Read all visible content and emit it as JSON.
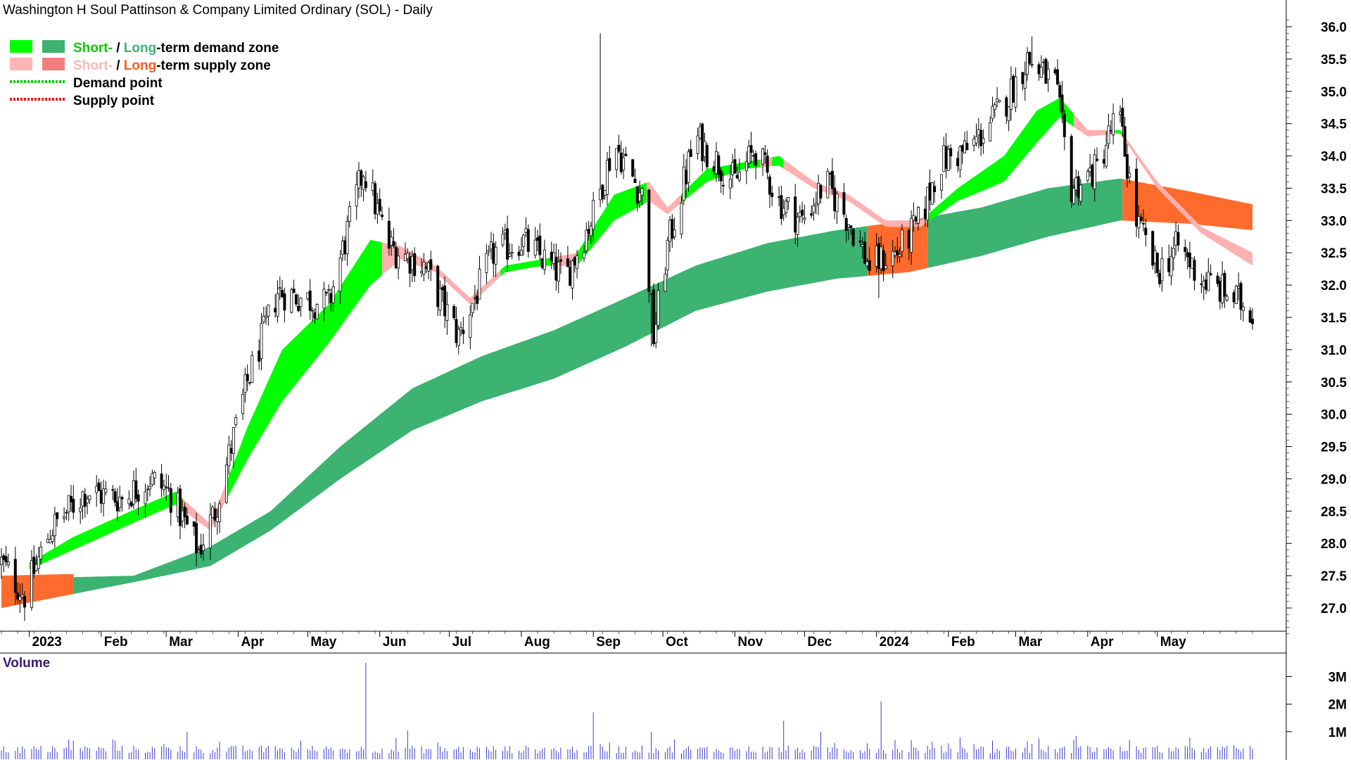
{
  "chart_data": {
    "type": "candlestick",
    "title": "Washington H Soul Pattinson & Company Limited Ordinary (SOL) - Daily",
    "legend": [
      {
        "swatch_colors": [
          "#00ff00",
          "#3cb371"
        ],
        "parts": [
          {
            "text": "Short-",
            "color": "#00cc00"
          },
          {
            "text": " / ",
            "color": "#000000"
          },
          {
            "text": "Long",
            "color": "#3cb371"
          },
          {
            "text": "-term demand zone",
            "color": "#000000"
          }
        ]
      },
      {
        "swatch_colors": [
          "#ffb6b6",
          "#f08080"
        ],
        "parts": [
          {
            "text": "Short-",
            "color": "#ffb6b6"
          },
          {
            "text": " / ",
            "color": "#000000"
          },
          {
            "text": "Long",
            "color": "#ff5a1e"
          },
          {
            "text": "-term supply zone",
            "color": "#000000"
          }
        ]
      },
      {
        "line_color": "#00cc00",
        "parts": [
          {
            "text": "Demand point",
            "color": "#000000"
          }
        ]
      },
      {
        "line_color": "#ff0000",
        "parts": [
          {
            "text": "Supply point",
            "color": "#000000"
          }
        ]
      }
    ],
    "y_axis": {
      "min": 26.5,
      "max": 36.2,
      "ticks": [
        27.0,
        27.5,
        28.0,
        28.5,
        29.0,
        29.5,
        30.0,
        30.5,
        31.0,
        31.5,
        32.0,
        32.5,
        33.0,
        33.5,
        34.0,
        34.5,
        35.0,
        35.5,
        36.0
      ]
    },
    "x_axis": {
      "start": "2022-12-20",
      "end": "2024-06-11",
      "month_labels": [
        {
          "label": "2023",
          "date": "2023-01-01"
        },
        {
          "label": "Feb",
          "date": "2023-02-01"
        },
        {
          "label": "Mar",
          "date": "2023-03-01"
        },
        {
          "label": "Apr",
          "date": "2023-04-01"
        },
        {
          "label": "May",
          "date": "2023-05-01"
        },
        {
          "label": "Jun",
          "date": "2023-06-01"
        },
        {
          "label": "Jul",
          "date": "2023-07-01"
        },
        {
          "label": "Aug",
          "date": "2023-08-01"
        },
        {
          "label": "Sep",
          "date": "2023-09-01"
        },
        {
          "label": "Oct",
          "date": "2023-10-01"
        },
        {
          "label": "Nov",
          "date": "2023-11-01"
        },
        {
          "label": "Dec",
          "date": "2023-12-01"
        },
        {
          "label": "2024",
          "date": "2024-01-01"
        },
        {
          "label": "Feb",
          "date": "2024-02-01"
        },
        {
          "label": "Mar",
          "date": "2024-03-01"
        },
        {
          "label": "Apr",
          "date": "2024-04-01"
        },
        {
          "label": "May",
          "date": "2024-05-01"
        }
      ]
    },
    "price_path": [
      [
        "2022-12-20",
        27.7
      ],
      [
        "2022-12-30",
        27.2
      ],
      [
        "2023-01-10",
        28.2
      ],
      [
        "2023-01-25",
        28.8
      ],
      [
        "2023-02-10",
        28.7
      ],
      [
        "2023-02-22",
        29.0
      ],
      [
        "2023-03-02",
        28.8
      ],
      [
        "2023-03-15",
        27.9
      ],
      [
        "2023-03-22",
        28.5
      ],
      [
        "2023-04-05",
        30.5
      ],
      [
        "2023-04-18",
        31.9
      ],
      [
        "2023-05-10",
        31.7
      ],
      [
        "2023-05-25",
        33.8
      ],
      [
        "2023-06-05",
        32.6
      ],
      [
        "2023-06-20",
        32.3
      ],
      [
        "2023-07-05",
        31.2
      ],
      [
        "2023-07-20",
        32.5
      ],
      [
        "2023-08-01",
        32.7
      ],
      [
        "2023-08-20",
        32.1
      ],
      [
        "2023-09-01",
        33.1
      ],
      [
        "2023-09-10",
        34.2
      ],
      [
        "2023-09-22",
        33.4
      ],
      [
        "2023-09-27",
        31.2
      ],
      [
        "2023-10-03",
        32.6
      ],
      [
        "2023-10-15",
        34.3
      ],
      [
        "2023-11-01",
        33.6
      ],
      [
        "2023-11-10",
        34.1
      ],
      [
        "2023-11-20",
        33.3
      ],
      [
        "2023-11-30",
        33.0
      ],
      [
        "2023-12-10",
        33.6
      ],
      [
        "2023-12-20",
        33.0
      ],
      [
        "2023-12-29",
        32.3
      ],
      [
        "2024-01-10",
        32.5
      ],
      [
        "2024-01-20",
        33.0
      ],
      [
        "2024-01-28",
        33.9
      ],
      [
        "2024-02-10",
        34.1
      ],
      [
        "2024-02-25",
        34.8
      ],
      [
        "2024-03-06",
        35.5
      ],
      [
        "2024-03-18",
        35.1
      ],
      [
        "2024-03-25",
        33.5
      ],
      [
        "2024-04-05",
        33.8
      ],
      [
        "2024-04-14",
        34.7
      ],
      [
        "2024-04-22",
        33.0
      ],
      [
        "2024-05-01",
        32.2
      ],
      [
        "2024-05-10",
        32.6
      ],
      [
        "2024-05-20",
        32.1
      ],
      [
        "2024-06-03",
        31.8
      ],
      [
        "2024-06-11",
        31.6
      ]
    ],
    "long_term_zone": {
      "upper": [
        [
          "2022-12-20",
          27.45
        ],
        [
          "2023-02-15",
          27.5
        ],
        [
          "2023-03-20",
          27.95
        ],
        [
          "2023-04-15",
          28.5
        ],
        [
          "2023-05-15",
          29.5
        ],
        [
          "2023-06-15",
          30.4
        ],
        [
          "2023-07-15",
          30.9
        ],
        [
          "2023-08-15",
          31.3
        ],
        [
          "2023-09-15",
          31.8
        ],
        [
          "2023-10-15",
          32.3
        ],
        [
          "2023-11-15",
          32.65
        ],
        [
          "2023-12-15",
          32.85
        ],
        [
          "2024-01-15",
          33.0
        ],
        [
          "2024-02-15",
          33.2
        ],
        [
          "2024-03-15",
          33.5
        ],
        [
          "2024-04-15",
          33.65
        ],
        [
          "2024-05-15",
          33.45
        ],
        [
          "2024-06-11",
          33.25
        ]
      ],
      "lower": [
        [
          "2022-12-20",
          27.0
        ],
        [
          "2023-02-15",
          27.4
        ],
        [
          "2023-03-20",
          27.65
        ],
        [
          "2023-04-15",
          28.2
        ],
        [
          "2023-05-15",
          29.0
        ],
        [
          "2023-06-15",
          29.75
        ],
        [
          "2023-07-15",
          30.2
        ],
        [
          "2023-08-15",
          30.55
        ],
        [
          "2023-09-15",
          31.05
        ],
        [
          "2023-10-15",
          31.6
        ],
        [
          "2023-11-15",
          31.9
        ],
        [
          "2023-12-15",
          32.1
        ],
        [
          "2024-01-15",
          32.2
        ],
        [
          "2024-02-15",
          32.45
        ],
        [
          "2024-03-15",
          32.75
        ],
        [
          "2024-04-15",
          33.0
        ],
        [
          "2024-05-15",
          32.95
        ],
        [
          "2024-06-11",
          32.85
        ]
      ],
      "supply_from": "2024-04-16",
      "supply_spans": [
        [
          "2023-12-28",
          "2024-01-22"
        ],
        [
          "2024-04-16",
          "2024-06-11"
        ]
      ]
    },
    "short_term_zone": {
      "points": [
        [
          "2023-01-01",
          27.7,
          27.6
        ],
        [
          "2023-01-20",
          28.1,
          27.9
        ],
        [
          "2023-02-20",
          28.6,
          28.4
        ],
        [
          "2023-03-05",
          28.8,
          28.6
        ],
        [
          "2023-03-20",
          28.3,
          28.2
        ],
        [
          "2023-04-05",
          29.8,
          29.3
        ],
        [
          "2023-04-20",
          31.0,
          30.2
        ],
        [
          "2023-05-10",
          31.7,
          31.1
        ],
        [
          "2023-05-28",
          32.7,
          32.0
        ],
        [
          "2023-06-10",
          32.6,
          32.4
        ],
        [
          "2023-06-25",
          32.3,
          32.2
        ],
        [
          "2023-07-10",
          31.8,
          31.7
        ],
        [
          "2023-07-25",
          32.3,
          32.2
        ],
        [
          "2023-08-10",
          32.4,
          32.3
        ],
        [
          "2023-08-25",
          32.5,
          32.3
        ],
        [
          "2023-09-10",
          33.4,
          33.0
        ],
        [
          "2023-09-25",
          33.6,
          33.3
        ],
        [
          "2023-10-03",
          33.2,
          33.1
        ],
        [
          "2023-10-20",
          33.8,
          33.6
        ],
        [
          "2023-11-05",
          33.9,
          33.8
        ],
        [
          "2023-11-20",
          34.0,
          33.85
        ],
        [
          "2023-12-05",
          33.6,
          33.5
        ],
        [
          "2023-12-20",
          33.4,
          33.3
        ],
        [
          "2024-01-05",
          33.0,
          32.9
        ],
        [
          "2024-01-20",
          33.0,
          32.9
        ],
        [
          "2024-02-05",
          33.5,
          33.3
        ],
        [
          "2024-02-25",
          34.0,
          33.6
        ],
        [
          "2024-03-10",
          34.7,
          34.2
        ],
        [
          "2024-03-20",
          34.9,
          34.6
        ],
        [
          "2024-04-01",
          34.4,
          34.3
        ],
        [
          "2024-04-15",
          34.4,
          34.35
        ],
        [
          "2024-05-01",
          33.6,
          33.5
        ],
        [
          "2024-05-20",
          32.9,
          32.8
        ],
        [
          "2024-06-11",
          32.5,
          32.3
        ]
      ],
      "supply_spans": [
        [
          "2023-03-08",
          "2023-03-26"
        ],
        [
          "2023-06-02",
          "2023-07-22"
        ],
        [
          "2023-08-14",
          "2023-08-24"
        ],
        [
          "2023-09-24",
          "2023-10-08"
        ],
        [
          "2023-11-12",
          "2023-11-16"
        ],
        [
          "2023-11-22",
          "2024-01-22"
        ],
        [
          "2024-03-26",
          "2024-04-12"
        ],
        [
          "2024-04-16",
          "2024-06-11"
        ]
      ]
    },
    "volume": {
      "label": "Volume",
      "ticks": [
        "1M",
        "2M",
        "3M"
      ],
      "ticks_values": [
        1,
        2,
        3
      ],
      "max": 3.6,
      "typical": 0.4,
      "spikes": [
        [
          "2023-03-10",
          1.0
        ],
        [
          "2023-05-26",
          3.5
        ],
        [
          "2023-06-13",
          1.05
        ],
        [
          "2023-09-01",
          1.7
        ],
        [
          "2023-09-26",
          1.0
        ],
        [
          "2023-11-22",
          1.4
        ],
        [
          "2023-12-08",
          1.0
        ],
        [
          "2024-01-03",
          2.1
        ],
        [
          "2024-02-06",
          0.8
        ],
        [
          "2024-03-27",
          0.85
        ],
        [
          "2024-04-19",
          0.7
        ]
      ]
    }
  }
}
